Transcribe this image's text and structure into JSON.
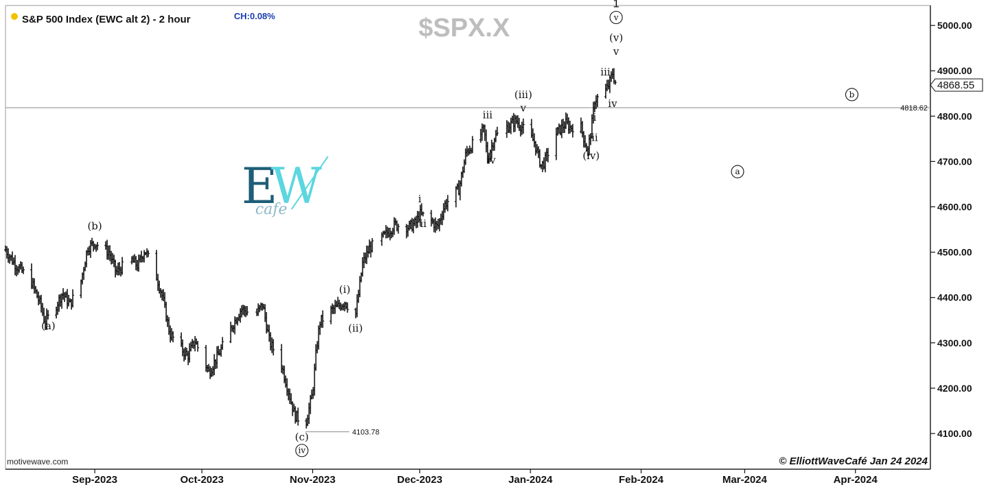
{
  "header": {
    "title": "S&P 500 Index (EWC alt 2) - 2 hour",
    "change": "CH:0.08%",
    "symbol": "$SPX.X",
    "status_dot_color": "#f2c200"
  },
  "footer": {
    "credit": "motivewave.com",
    "copyright": "© ElliottWaveCafé Jan 24 2024"
  },
  "logo": {
    "letter_e": "E",
    "letter_w": "W",
    "subtitle": "cafe"
  },
  "chart_data": {
    "type": "ohlc_bar",
    "ylim": [
      4040,
      5090
    ],
    "grid": false,
    "y_ticks": [
      "4100.00",
      "4200.00",
      "4300.00",
      "4400.00",
      "4500.00",
      "4600.00",
      "4700.00",
      "4800.00",
      "4900.00",
      "5000.00"
    ],
    "x_ticks": [
      "Sep-2023",
      "Oct-2023",
      "Nov-2023",
      "Dec-2023",
      "Jan-2024",
      "Feb-2024",
      "Mar-2024",
      "Apr-2024"
    ],
    "x_range": [
      "2023-08-07",
      "2024-04-22"
    ],
    "last_price": "4868.55",
    "horizontal_level": {
      "value": 4818.62,
      "label": "4818.62"
    },
    "low_marker": {
      "value": 4103.78,
      "label": "4103.78"
    },
    "price_path": [
      [
        "2023-08-07",
        4505
      ],
      [
        "2023-08-10",
        4470
      ],
      [
        "2023-08-14",
        4440
      ],
      [
        "2023-08-17",
        4380
      ],
      [
        "2023-08-18",
        4345
      ],
      [
        "2023-08-21",
        4380
      ],
      [
        "2023-08-23",
        4410
      ],
      [
        "2023-08-25",
        4385
      ],
      [
        "2023-08-28",
        4430
      ],
      [
        "2023-08-30",
        4510
      ],
      [
        "2023-09-01",
        4520
      ],
      [
        "2023-09-05",
        4500
      ],
      [
        "2023-09-07",
        4455
      ],
      [
        "2023-09-11",
        4485
      ],
      [
        "2023-09-13",
        4470
      ],
      [
        "2023-09-15",
        4505
      ],
      [
        "2023-09-18",
        4455
      ],
      [
        "2023-09-20",
        4400
      ],
      [
        "2023-09-22",
        4320
      ],
      [
        "2023-09-25",
        4290
      ],
      [
        "2023-09-27",
        4270
      ],
      [
        "2023-09-29",
        4305
      ],
      [
        "2023-10-03",
        4235
      ],
      [
        "2023-10-06",
        4280
      ],
      [
        "2023-10-09",
        4330
      ],
      [
        "2023-10-12",
        4375
      ],
      [
        "2023-10-16",
        4360
      ],
      [
        "2023-10-18",
        4385
      ],
      [
        "2023-10-20",
        4300
      ],
      [
        "2023-10-23",
        4260
      ],
      [
        "2023-10-25",
        4200
      ],
      [
        "2023-10-27",
        4140
      ],
      [
        "2023-10-30",
        4120
      ],
      [
        "2023-11-01",
        4190
      ],
      [
        "2023-11-02",
        4280
      ],
      [
        "2023-11-03",
        4345
      ],
      [
        "2023-11-06",
        4370
      ],
      [
        "2023-11-08",
        4380
      ],
      [
        "2023-11-10",
        4390
      ],
      [
        "2023-11-13",
        4360
      ],
      [
        "2023-11-14",
        4415
      ],
      [
        "2023-11-15",
        4475
      ],
      [
        "2023-11-17",
        4510
      ],
      [
        "2023-11-21",
        4535
      ],
      [
        "2023-11-24",
        4560
      ],
      [
        "2023-11-28",
        4555
      ],
      [
        "2023-11-30",
        4565
      ],
      [
        "2023-12-01",
        4585
      ],
      [
        "2023-12-04",
        4570
      ],
      [
        "2023-12-06",
        4555
      ],
      [
        "2023-12-08",
        4605
      ],
      [
        "2023-12-12",
        4640
      ],
      [
        "2023-12-14",
        4720
      ],
      [
        "2023-12-18",
        4760
      ],
      [
        "2023-12-19",
        4770
      ],
      [
        "2023-12-20",
        4705
      ],
      [
        "2023-12-22",
        4755
      ],
      [
        "2023-12-27",
        4785
      ],
      [
        "2023-12-28",
        4790
      ],
      [
        "2024-01-02",
        4745
      ],
      [
        "2024-01-04",
        4690
      ],
      [
        "2024-01-05",
        4700
      ],
      [
        "2024-01-08",
        4760
      ],
      [
        "2024-01-11",
        4785
      ],
      [
        "2024-01-12",
        4775
      ],
      [
        "2024-01-15",
        4780
      ],
      [
        "2024-01-17",
        4720
      ],
      [
        "2024-01-18",
        4770
      ],
      [
        "2024-01-19",
        4835
      ],
      [
        "2024-01-22",
        4855
      ],
      [
        "2024-01-23",
        4870
      ],
      [
        "2024-01-24",
        4895
      ],
      [
        "2024-01-25",
        4868.55
      ]
    ],
    "labels": [
      {
        "text": "(a)",
        "date": "2023-08-19",
        "price": 4330,
        "style": "wave"
      },
      {
        "text": "(b)",
        "date": "2023-09-01",
        "price": 4550,
        "style": "wave"
      },
      {
        "text": "(c)",
        "date": "2023-10-29",
        "price": 4085,
        "style": "wave"
      },
      {
        "text": "iv",
        "date": "2023-10-29",
        "price": 4055,
        "style": "circled"
      },
      {
        "text": "(i)",
        "date": "2023-11-10",
        "price": 4410,
        "style": "wave"
      },
      {
        "text": "(ii)",
        "date": "2023-11-13",
        "price": 4325,
        "style": "wave"
      },
      {
        "text": "i",
        "date": "2023-12-01",
        "price": 4610,
        "style": "wave"
      },
      {
        "text": "ii",
        "date": "2023-12-02",
        "price": 4555,
        "style": "wave"
      },
      {
        "text": "iii",
        "date": "2023-12-20",
        "price": 4795,
        "style": "wave"
      },
      {
        "text": "iv",
        "date": "2023-12-21",
        "price": 4695,
        "style": "wave"
      },
      {
        "text": "(iii)",
        "date": "2023-12-30",
        "price": 4840,
        "style": "wave"
      },
      {
        "text": "v",
        "date": "2023-12-30",
        "price": 4810,
        "style": "wave"
      },
      {
        "text": "(iv)",
        "date": "2024-01-18",
        "price": 4705,
        "style": "wave"
      },
      {
        "text": "i",
        "date": "2024-01-19",
        "price": 4790,
        "style": "wave"
      },
      {
        "text": "ii",
        "date": "2024-01-19",
        "price": 4745,
        "style": "wave"
      },
      {
        "text": "iii",
        "date": "2024-01-22",
        "price": 4890,
        "style": "wave"
      },
      {
        "text": "iv",
        "date": "2024-01-24",
        "price": 4820,
        "style": "wave"
      },
      {
        "text": "v",
        "date": "2024-01-25",
        "price": 4935,
        "style": "wave"
      },
      {
        "text": "(v)",
        "date": "2024-01-25",
        "price": 4965,
        "style": "wave"
      },
      {
        "text": "v",
        "date": "2024-01-25",
        "price": 5010,
        "style": "circled"
      },
      {
        "text": "1",
        "date": "2024-01-25",
        "price": 5040,
        "style": "top"
      },
      {
        "text": "a",
        "date": "2024-02-28",
        "price": 4670,
        "style": "circled"
      },
      {
        "text": "b",
        "date": "2024-03-31",
        "price": 4840,
        "style": "circled"
      }
    ]
  }
}
